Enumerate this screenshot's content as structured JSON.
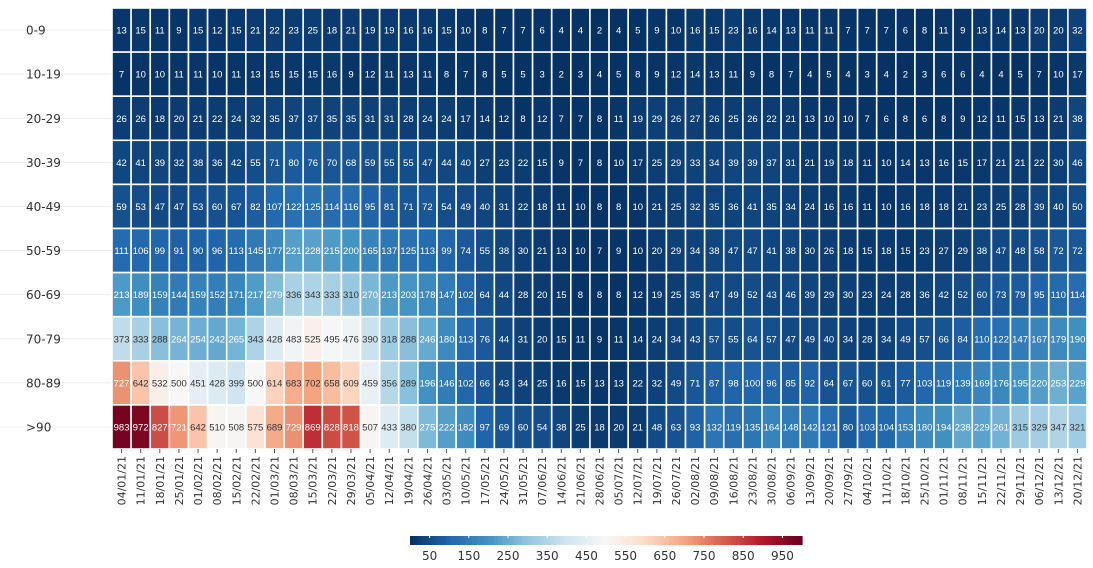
{
  "chart_data": {
    "type": "heatmap",
    "title": "",
    "xlabel": "",
    "ylabel": "",
    "x": [
      "04/01/21",
      "11/01/21",
      "18/01/21",
      "25/01/21",
      "01/02/21",
      "08/02/21",
      "15/02/21",
      "22/02/21",
      "01/03/21",
      "08/03/21",
      "15/03/21",
      "22/03/21",
      "29/03/21",
      "05/04/21",
      "12/04/21",
      "19/04/21",
      "26/04/21",
      "03/05/21",
      "10/05/21",
      "17/05/21",
      "24/05/21",
      "31/05/21",
      "07/06/21",
      "14/06/21",
      "21/06/21",
      "28/06/21",
      "05/07/21",
      "12/07/21",
      "19/07/21",
      "26/07/21",
      "02/08/21",
      "09/08/21",
      "16/08/21",
      "23/08/21",
      "30/08/21",
      "06/09/21",
      "13/09/21",
      "20/09/21",
      "27/09/21",
      "04/10/21",
      "11/10/21",
      "18/10/21",
      "25/10/21",
      "01/11/21",
      "08/11/21",
      "15/11/21",
      "22/11/21",
      "29/11/21",
      "06/12/21",
      "13/12/21",
      "20/12/21"
    ],
    "y": [
      "0-9",
      "10-19",
      "20-29",
      "30-39",
      "40-49",
      "50-59",
      "60-69",
      "70-79",
      "80-89",
      ">90"
    ],
    "values": [
      [
        13,
        15,
        11,
        9,
        15,
        12,
        15,
        21,
        22,
        23,
        25,
        18,
        21,
        19,
        19,
        16,
        16,
        15,
        10,
        8,
        7,
        7,
        6,
        4,
        4,
        2,
        4,
        5,
        9,
        10,
        16,
        15,
        23,
        16,
        14,
        13,
        11,
        11,
        7,
        7,
        7,
        6,
        8,
        11,
        9,
        13,
        14,
        13,
        20,
        20,
        32
      ],
      [
        7,
        10,
        10,
        11,
        11,
        10,
        11,
        13,
        15,
        15,
        15,
        16,
        9,
        12,
        11,
        13,
        11,
        8,
        7,
        8,
        5,
        5,
        3,
        2,
        3,
        4,
        5,
        8,
        9,
        12,
        14,
        13,
        11,
        9,
        8,
        7,
        4,
        5,
        4,
        3,
        4,
        2,
        3,
        6,
        6,
        4,
        4,
        5,
        7,
        10,
        17
      ],
      [
        26,
        26,
        18,
        20,
        21,
        22,
        24,
        32,
        35,
        37,
        37,
        35,
        35,
        31,
        31,
        28,
        24,
        24,
        17,
        14,
        12,
        8,
        12,
        7,
        7,
        8,
        11,
        19,
        29,
        26,
        27,
        26,
        25,
        26,
        22,
        21,
        13,
        10,
        10,
        7,
        6,
        8,
        6,
        8,
        9,
        12,
        11,
        15,
        13,
        21,
        38
      ],
      [
        42,
        41,
        39,
        32,
        38,
        36,
        42,
        55,
        71,
        80,
        76,
        70,
        68,
        59,
        55,
        55,
        47,
        44,
        40,
        27,
        23,
        22,
        15,
        9,
        7,
        8,
        10,
        17,
        25,
        29,
        33,
        34,
        39,
        39,
        37,
        31,
        21,
        19,
        18,
        11,
        10,
        14,
        13,
        16,
        15,
        17,
        21,
        21,
        22,
        30,
        46
      ],
      [
        59,
        53,
        47,
        47,
        53,
        60,
        67,
        82,
        107,
        122,
        125,
        114,
        116,
        95,
        81,
        71,
        72,
        54,
        49,
        40,
        31,
        22,
        18,
        11,
        10,
        8,
        8,
        10,
        21,
        25,
        32,
        35,
        36,
        41,
        35,
        34,
        24,
        16,
        16,
        11,
        10,
        16,
        18,
        18,
        21,
        23,
        25,
        28,
        39,
        40,
        50
      ],
      [
        111,
        106,
        99,
        91,
        90,
        96,
        113,
        145,
        177,
        221,
        228,
        215,
        200,
        165,
        137,
        125,
        113,
        99,
        74,
        55,
        38,
        30,
        21,
        13,
        10,
        7,
        9,
        10,
        20,
        29,
        34,
        38,
        47,
        47,
        41,
        38,
        30,
        26,
        18,
        15,
        18,
        15,
        23,
        27,
        29,
        38,
        47,
        48,
        58,
        72,
        72
      ],
      [
        213,
        189,
        159,
        144,
        159,
        152,
        171,
        217,
        279,
        336,
        343,
        333,
        310,
        270,
        213,
        203,
        178,
        147,
        102,
        64,
        44,
        28,
        20,
        15,
        8,
        8,
        8,
        12,
        19,
        25,
        35,
        47,
        49,
        52,
        43,
        46,
        39,
        29,
        30,
        23,
        24,
        28,
        36,
        42,
        52,
        60,
        73,
        79,
        95,
        110,
        114
      ],
      [
        373,
        333,
        288,
        264,
        254,
        242,
        265,
        343,
        428,
        483,
        525,
        495,
        476,
        390,
        318,
        288,
        246,
        180,
        113,
        76,
        44,
        31,
        20,
        15,
        11,
        9,
        11,
        14,
        24,
        34,
        43,
        57,
        55,
        64,
        57,
        47,
        49,
        40,
        34,
        28,
        34,
        49,
        57,
        66,
        84,
        110,
        122,
        147,
        167,
        179,
        190
      ],
      [
        727,
        642,
        532,
        500,
        451,
        428,
        399,
        500,
        614,
        683,
        702,
        658,
        609,
        459,
        356,
        289,
        196,
        146,
        102,
        66,
        43,
        34,
        25,
        16,
        15,
        13,
        13,
        22,
        32,
        49,
        71,
        87,
        98,
        100,
        96,
        85,
        92,
        64,
        67,
        60,
        61,
        77,
        103,
        119,
        139,
        169,
        176,
        195,
        220,
        253,
        229
      ],
      [
        983,
        972,
        827,
        721,
        642,
        510,
        508,
        575,
        689,
        729,
        869,
        828,
        818,
        507,
        433,
        380,
        275,
        222,
        182,
        97,
        69,
        60,
        54,
        38,
        25,
        18,
        20,
        21,
        48,
        63,
        93,
        132,
        119,
        135,
        164,
        148,
        142,
        121,
        80,
        103,
        104,
        153,
        180,
        194,
        238,
        229,
        261,
        315,
        329,
        347,
        321
      ]
    ],
    "color_scale": {
      "min": 0,
      "max": 1000,
      "stops": [
        "#053061",
        "#2166ac",
        "#4393c3",
        "#92c5de",
        "#d1e5f0",
        "#f7f7f7",
        "#fddbc7",
        "#f4a582",
        "#d6604d",
        "#b2182b",
        "#67001f"
      ]
    },
    "legend": {
      "position": "bottom",
      "ticks": [
        50,
        150,
        250,
        350,
        450,
        550,
        650,
        750,
        850,
        950
      ]
    },
    "grid": true
  }
}
